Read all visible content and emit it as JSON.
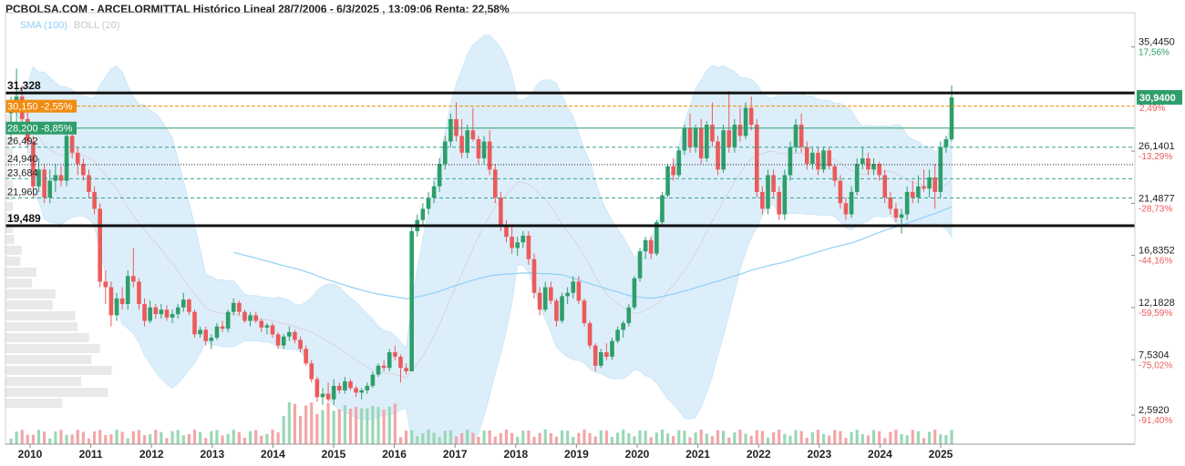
{
  "header": {
    "title": "PCBOLSA.COM - ARCELORMITTAL Histórico Lineal 28/7/2006 - 6/3/2025 , 13:09:06 Renta: 22,58%"
  },
  "legend": {
    "sma": "SMA (100)",
    "boll": "BOLL (20)"
  },
  "colors": {
    "up": "#2e9e6a",
    "down": "#ec5a5a",
    "band": "#d6ecfa",
    "sma": "#8fd0f5",
    "boll_mid": "#d9b8b8",
    "accent_orange": "#f08c10",
    "accent_green": "#2e9e6a"
  },
  "chart_data": {
    "type": "candlestick",
    "title": "ARCELORMITTAL Histórico Lineal",
    "period": "28/7/2006 - 6/3/2025",
    "return": "22,58%",
    "x_tick_labels": [
      "2010",
      "2011",
      "2012",
      "2013",
      "2014",
      "2015",
      "2016",
      "2017",
      "2018",
      "2019",
      "2020",
      "2021",
      "2022",
      "2023",
      "2024",
      "2025"
    ],
    "y_range": [
      0,
      38
    ],
    "right_axis": [
      {
        "value": 35.445,
        "label": "35,4450",
        "pct": "17,56%"
      },
      {
        "value": 30.94,
        "label": "30,9400",
        "pct": "2,49%",
        "highlight": true
      },
      {
        "value": 26.1401,
        "label": "26,1401",
        "pct": "-13,29%"
      },
      {
        "value": 21.4877,
        "label": "21,4877",
        "pct": "-28,73%"
      },
      {
        "value": 16.8352,
        "label": "16,8352",
        "pct": "-44,16%"
      },
      {
        "value": 12.1828,
        "label": "12,1828",
        "pct": "-59,59%"
      },
      {
        "value": 7.5304,
        "label": "7,5304",
        "pct": "-75,02%"
      },
      {
        "value": 2.592,
        "label": "2,5920",
        "pct": "-91,40%"
      }
    ],
    "levels": [
      {
        "value": 31.328,
        "label": "31,328",
        "style": "bold"
      },
      {
        "value": 30.15,
        "label": "30,150 -2,55%",
        "style": "orange"
      },
      {
        "value": 28.2,
        "label": "28,200 -8,85%",
        "style": "green"
      },
      {
        "value": 26.492,
        "label": "26,492",
        "style": "dashed"
      },
      {
        "value": 24.94,
        "label": "24,940",
        "style": "dotted"
      },
      {
        "value": 23.684,
        "label": "23,684",
        "style": "dashed"
      },
      {
        "value": 21.96,
        "label": "21,960",
        "style": "dashed"
      },
      {
        "value": 19.489,
        "label": "19,489",
        "style": "bold"
      }
    ],
    "series": [
      {
        "name": "Precio",
        "values": [
          [
            29.5,
            31.0,
            27.0,
            30.0
          ],
          [
            30.0,
            33.5,
            28.0,
            31.0
          ],
          [
            31.0,
            32.0,
            28.5,
            29.0
          ],
          [
            29.0,
            30.0,
            26.5,
            27.0
          ],
          [
            27.0,
            27.5,
            22.0,
            23.0
          ],
          [
            23.0,
            25.5,
            22.5,
            24.5
          ],
          [
            24.5,
            25.0,
            21.5,
            22.0
          ],
          [
            22.0,
            24.5,
            21.5,
            23.5
          ],
          [
            23.5,
            25.0,
            22.5,
            24.0
          ],
          [
            24.0,
            24.8,
            23.0,
            23.5
          ],
          [
            23.5,
            28.0,
            23.0,
            27.5
          ],
          [
            27.5,
            28.5,
            25.5,
            26.0
          ],
          [
            26.0,
            26.5,
            24.0,
            25.0
          ],
          [
            25.0,
            25.5,
            23.5,
            24.0
          ],
          [
            24.0,
            24.5,
            22.0,
            22.5
          ],
          [
            22.5,
            23.0,
            20.5,
            21.0
          ],
          [
            21.0,
            21.5,
            14.0,
            14.5
          ],
          [
            14.5,
            15.5,
            12.5,
            14.0
          ],
          [
            14.0,
            14.5,
            10.5,
            11.5
          ],
          [
            11.5,
            13.5,
            11.0,
            13.0
          ],
          [
            13.0,
            14.0,
            12.0,
            12.5
          ],
          [
            12.5,
            15.5,
            12.0,
            15.0
          ],
          [
            15.0,
            17.5,
            14.0,
            14.5
          ],
          [
            14.5,
            14.8,
            12.0,
            12.5
          ],
          [
            12.5,
            13.0,
            10.5,
            11.0
          ],
          [
            11.0,
            12.8,
            10.8,
            12.2
          ],
          [
            12.2,
            12.5,
            11.2,
            11.6
          ],
          [
            11.6,
            12.5,
            11.2,
            12.0
          ],
          [
            12.0,
            12.4,
            11.0,
            11.3
          ],
          [
            11.3,
            12.0,
            10.8,
            11.6
          ],
          [
            11.6,
            12.5,
            11.2,
            12.2
          ],
          [
            12.2,
            13.5,
            11.8,
            12.9
          ],
          [
            12.9,
            13.0,
            11.5,
            11.8
          ],
          [
            11.8,
            12.0,
            9.5,
            9.8
          ],
          [
            9.8,
            10.5,
            9.5,
            10.2
          ],
          [
            10.2,
            10.5,
            8.8,
            9.2
          ],
          [
            9.2,
            9.8,
            8.5,
            9.5
          ],
          [
            9.5,
            10.8,
            9.3,
            10.5
          ],
          [
            10.5,
            11.0,
            10.0,
            10.3
          ],
          [
            10.3,
            12.0,
            10.0,
            11.8
          ],
          [
            11.8,
            13.0,
            11.5,
            12.6
          ],
          [
            12.6,
            12.8,
            11.5,
            11.8
          ],
          [
            11.8,
            12.0,
            10.8,
            11.0
          ],
          [
            11.0,
            11.8,
            10.5,
            11.5
          ],
          [
            11.5,
            11.8,
            10.8,
            11.0
          ],
          [
            11.0,
            11.2,
            10.0,
            10.4
          ],
          [
            10.4,
            10.8,
            9.8,
            10.6
          ],
          [
            10.6,
            10.8,
            9.5,
            9.8
          ],
          [
            9.8,
            10.0,
            8.5,
            8.8
          ],
          [
            8.8,
            9.8,
            8.5,
            9.6
          ],
          [
            9.6,
            10.5,
            9.2,
            10.0
          ],
          [
            10.0,
            10.2,
            9.0,
            9.3
          ],
          [
            9.3,
            9.6,
            8.2,
            8.5
          ],
          [
            8.5,
            8.8,
            7.0,
            7.2
          ],
          [
            7.2,
            7.5,
            5.5,
            5.8
          ],
          [
            5.8,
            6.0,
            3.8,
            4.2
          ],
          [
            4.2,
            5.0,
            3.5,
            4.5
          ],
          [
            4.5,
            5.5,
            3.8,
            4.0
          ],
          [
            4.0,
            5.8,
            3.5,
            5.2
          ],
          [
            5.2,
            5.5,
            4.5,
            4.8
          ],
          [
            4.8,
            6.0,
            4.5,
            5.6
          ],
          [
            5.6,
            5.8,
            4.8,
            5.0
          ],
          [
            5.0,
            5.2,
            4.2,
            4.6
          ],
          [
            4.6,
            5.0,
            4.0,
            4.8
          ],
          [
            4.8,
            5.5,
            4.5,
            5.2
          ],
          [
            5.2,
            6.5,
            5.0,
            6.2
          ],
          [
            6.2,
            7.2,
            6.0,
            7.0
          ],
          [
            7.0,
            7.5,
            6.5,
            6.8
          ],
          [
            6.8,
            8.5,
            6.5,
            8.2
          ],
          [
            8.2,
            8.8,
            7.5,
            7.8
          ],
          [
            7.8,
            8.0,
            5.5,
            6.8
          ],
          [
            6.8,
            7.2,
            6.2,
            6.5
          ],
          [
            6.5,
            19.5,
            6.5,
            19.0
          ],
          [
            19.0,
            20.5,
            18.5,
            20.0
          ],
          [
            20.0,
            21.5,
            19.5,
            21.0
          ],
          [
            21.0,
            22.5,
            20.5,
            22.0
          ],
          [
            22.0,
            23.5,
            21.5,
            23.0
          ],
          [
            23.0,
            25.5,
            22.5,
            25.0
          ],
          [
            25.0,
            27.5,
            24.5,
            27.0
          ],
          [
            27.0,
            29.5,
            26.5,
            29.0
          ],
          [
            29.0,
            30.5,
            27.0,
            27.5
          ],
          [
            27.5,
            29.0,
            25.5,
            26.0
          ],
          [
            26.0,
            28.5,
            25.5,
            28.0
          ],
          [
            28.0,
            30.0,
            27.0,
            27.2
          ],
          [
            27.2,
            27.5,
            25.0,
            25.5
          ],
          [
            25.5,
            27.5,
            25.0,
            27.0
          ],
          [
            27.0,
            28.0,
            24.0,
            24.5
          ],
          [
            24.5,
            25.0,
            21.5,
            22.0
          ],
          [
            22.0,
            22.5,
            19.0,
            19.5
          ],
          [
            19.5,
            20.0,
            18.0,
            18.5
          ],
          [
            18.5,
            19.5,
            17.0,
            17.5
          ],
          [
            17.5,
            18.5,
            16.8,
            18.0
          ],
          [
            18.0,
            19.0,
            17.5,
            18.6
          ],
          [
            18.6,
            19.0,
            16.0,
            16.5
          ],
          [
            16.5,
            17.0,
            13.0,
            13.5
          ],
          [
            13.5,
            14.0,
            11.5,
            12.0
          ],
          [
            12.0,
            14.5,
            11.8,
            14.0
          ],
          [
            14.0,
            14.5,
            12.5,
            12.8
          ],
          [
            12.8,
            13.0,
            10.5,
            11.0
          ],
          [
            11.0,
            13.5,
            10.8,
            13.2
          ],
          [
            13.2,
            14.0,
            12.5,
            13.5
          ],
          [
            13.5,
            15.0,
            13.0,
            14.5
          ],
          [
            14.5,
            15.0,
            12.5,
            12.8
          ],
          [
            12.8,
            13.0,
            10.5,
            10.8
          ],
          [
            10.8,
            11.0,
            8.5,
            8.8
          ],
          [
            8.8,
            9.0,
            6.5,
            7.0
          ],
          [
            7.0,
            8.5,
            6.8,
            8.2
          ],
          [
            8.2,
            9.0,
            7.5,
            7.8
          ],
          [
            7.8,
            9.5,
            7.5,
            9.2
          ],
          [
            9.2,
            10.5,
            9.0,
            10.2
          ],
          [
            10.2,
            11.0,
            9.5,
            10.8
          ],
          [
            10.8,
            12.5,
            10.5,
            12.2
          ],
          [
            12.2,
            15.0,
            12.0,
            14.8
          ],
          [
            14.8,
            17.5,
            14.5,
            17.2
          ],
          [
            17.2,
            18.5,
            16.5,
            18.2
          ],
          [
            18.2,
            18.5,
            16.5,
            17.0
          ],
          [
            17.0,
            20.0,
            16.8,
            19.8
          ],
          [
            19.8,
            22.5,
            19.5,
            22.2
          ],
          [
            22.2,
            25.0,
            22.0,
            24.8
          ],
          [
            24.8,
            25.5,
            23.5,
            24.0
          ],
          [
            24.0,
            26.5,
            23.8,
            26.2
          ],
          [
            26.2,
            28.5,
            25.8,
            28.2
          ],
          [
            28.2,
            29.5,
            26.0,
            26.5
          ],
          [
            26.5,
            28.5,
            26.0,
            28.2
          ],
          [
            28.2,
            29.0,
            25.0,
            25.5
          ],
          [
            25.5,
            28.8,
            25.2,
            28.5
          ],
          [
            28.5,
            30.5,
            26.5,
            27.0
          ],
          [
            27.0,
            27.5,
            24.0,
            24.5
          ],
          [
            24.5,
            28.5,
            24.2,
            28.0
          ],
          [
            28.0,
            31.5,
            26.0,
            26.5
          ],
          [
            26.5,
            29.0,
            26.0,
            28.5
          ],
          [
            28.5,
            30.0,
            27.0,
            27.5
          ],
          [
            27.5,
            30.5,
            27.2,
            30.0
          ],
          [
            30.0,
            31.0,
            28.0,
            28.5
          ],
          [
            28.5,
            29.0,
            22.0,
            22.5
          ],
          [
            22.5,
            23.0,
            20.5,
            21.0
          ],
          [
            21.0,
            24.5,
            20.5,
            24.0
          ],
          [
            24.0,
            24.5,
            22.0,
            22.5
          ],
          [
            22.5,
            23.0,
            20.0,
            20.5
          ],
          [
            20.5,
            24.5,
            20.0,
            24.0
          ],
          [
            24.0,
            27.0,
            23.5,
            26.5
          ],
          [
            26.5,
            29.0,
            26.0,
            28.5
          ],
          [
            28.5,
            29.5,
            26.0,
            26.5
          ],
          [
            26.5,
            27.0,
            24.5,
            25.0
          ],
          [
            25.0,
            26.5,
            24.5,
            26.0
          ],
          [
            26.0,
            26.5,
            24.0,
            24.5
          ],
          [
            24.5,
            26.5,
            24.2,
            26.2
          ],
          [
            26.2,
            26.5,
            24.5,
            24.8
          ],
          [
            24.8,
            25.0,
            23.0,
            23.5
          ],
          [
            23.5,
            24.0,
            21.0,
            21.5
          ],
          [
            21.5,
            22.0,
            20.0,
            20.5
          ],
          [
            20.5,
            23.0,
            20.2,
            22.5
          ],
          [
            22.5,
            25.5,
            22.2,
            25.0
          ],
          [
            25.0,
            26.5,
            24.5,
            25.5
          ],
          [
            25.5,
            26.0,
            24.0,
            24.5
          ],
          [
            24.5,
            25.5,
            24.0,
            25.0
          ],
          [
            25.0,
            25.2,
            23.5,
            24.0
          ],
          [
            24.0,
            24.5,
            21.5,
            22.0
          ],
          [
            22.0,
            22.5,
            20.5,
            21.0
          ],
          [
            21.0,
            21.5,
            19.8,
            20.2
          ],
          [
            20.2,
            21.0,
            18.8,
            20.5
          ],
          [
            20.5,
            23.0,
            20.0,
            22.5
          ],
          [
            22.5,
            23.5,
            21.5,
            22.0
          ],
          [
            22.0,
            24.0,
            21.5,
            23.0
          ],
          [
            23.0,
            24.5,
            22.5,
            22.8
          ],
          [
            22.8,
            24.5,
            22.0,
            23.8
          ],
          [
            23.8,
            25.0,
            21.0,
            22.5
          ],
          [
            22.5,
            27.0,
            22.0,
            26.5
          ],
          [
            26.5,
            27.5,
            26.0,
            27.2
          ],
          [
            27.2,
            32.0,
            27.0,
            30.94
          ]
        ]
      }
    ]
  }
}
